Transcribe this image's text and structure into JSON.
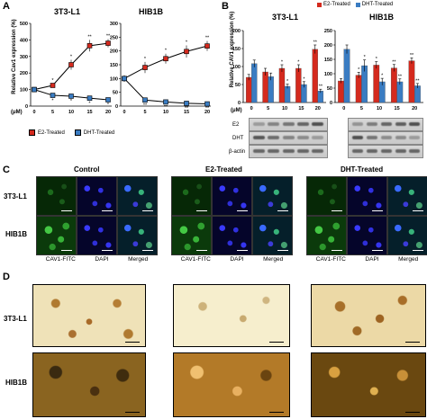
{
  "panels": {
    "A": {
      "label": "A",
      "ylabel": "Relative Cav1 expression (%)",
      "xunit": "(μM)",
      "legend": [
        "E2-Treated",
        "DHT-Treated"
      ],
      "charts": [
        {
          "title": "3T3-L1"
        },
        {
          "title": "HIB1B"
        }
      ]
    },
    "B": {
      "label": "B",
      "ylabel": "Relative CAV1 expression (%)",
      "xunit": "(μM)",
      "legend": [
        "E2-Treated",
        "DHT-Treated"
      ],
      "blot_labels": [
        "E2",
        "DHT",
        "β-actin"
      ],
      "charts": [
        {
          "title": "3T3-L1"
        },
        {
          "title": "HIB1B"
        }
      ]
    },
    "C": {
      "label": "C",
      "groups": [
        "Control",
        "E2-Treated",
        "DHT-Treated"
      ],
      "rows": [
        "3T3-L1",
        "HIB1B"
      ],
      "channels": [
        "CAV1-FITC",
        "DAPI",
        "Merged"
      ]
    },
    "D": {
      "label": "D",
      "rows": [
        "3T3-L1",
        "HIB1B"
      ]
    }
  },
  "colors": {
    "e2": "#d42a1e",
    "dht": "#3a7cc2"
  },
  "chart_data": [
    {
      "type": "line",
      "panel": "A",
      "title": "3T3-L1",
      "x": [
        0,
        5,
        10,
        15,
        20
      ],
      "ylim": [
        0,
        500
      ],
      "yticks": [
        0,
        100,
        200,
        300,
        400,
        500
      ],
      "series": [
        {
          "name": "E2-Treated",
          "values": [
            100,
            125,
            250,
            365,
            380
          ],
          "err": [
            10,
            12,
            30,
            35,
            25
          ],
          "marks": [
            "",
            "*",
            "*",
            "**",
            "**"
          ]
        },
        {
          "name": "DHT-Treated",
          "values": [
            100,
            65,
            60,
            48,
            38
          ],
          "err": [
            8,
            8,
            6,
            6,
            5
          ],
          "marks": [
            "",
            "*",
            "*",
            "*",
            "*"
          ]
        }
      ]
    },
    {
      "type": "line",
      "panel": "A",
      "title": "HIB1B",
      "x": [
        0,
        5,
        10,
        15,
        20
      ],
      "ylim": [
        0,
        300
      ],
      "yticks": [
        0,
        50,
        100,
        150,
        200,
        250,
        300
      ],
      "series": [
        {
          "name": "E2-Treated",
          "values": [
            100,
            140,
            172,
            198,
            218
          ],
          "err": [
            12,
            20,
            18,
            22,
            18
          ],
          "marks": [
            "",
            "*",
            "*",
            "*",
            "**"
          ]
        },
        {
          "name": "DHT-Treated",
          "values": [
            100,
            22,
            15,
            10,
            8
          ],
          "err": [
            10,
            4,
            3,
            3,
            2
          ],
          "marks": [
            "",
            "**",
            "**",
            "**",
            "**"
          ]
        }
      ]
    },
    {
      "type": "bar",
      "panel": "B",
      "title": "3T3-L1",
      "categories": [
        "0",
        "5",
        "10",
        "15",
        "20"
      ],
      "ylim": [
        0,
        200
      ],
      "yticks": [
        0,
        50,
        100,
        150,
        200
      ],
      "series": [
        {
          "name": "E2-Treated",
          "values": [
            70,
            85,
            95,
            95,
            148
          ],
          "err": [
            8,
            10,
            10,
            10,
            12
          ],
          "marks": [
            "",
            "",
            "*",
            "*",
            "**"
          ]
        },
        {
          "name": "DHT-Treated",
          "values": [
            108,
            72,
            45,
            50,
            32
          ],
          "err": [
            10,
            10,
            6,
            8,
            5
          ],
          "marks": [
            "",
            "",
            "*",
            "*",
            "**"
          ]
        }
      ]
    },
    {
      "type": "bar",
      "panel": "B",
      "title": "HIB1B",
      "categories": [
        "0",
        "5",
        "10",
        "15",
        "20"
      ],
      "ylim": [
        0,
        250
      ],
      "yticks": [
        0,
        50,
        100,
        150,
        200,
        250
      ],
      "series": [
        {
          "name": "E2-Treated",
          "values": [
            75,
            95,
            130,
            120,
            145
          ],
          "err": [
            8,
            10,
            12,
            12,
            10
          ],
          "marks": [
            "",
            "*",
            "*",
            "**",
            "**"
          ]
        },
        {
          "name": "DHT-Treated",
          "values": [
            185,
            128,
            72,
            72,
            58
          ],
          "err": [
            15,
            20,
            12,
            10,
            8
          ],
          "marks": [
            "",
            "*",
            "*",
            "**",
            "**"
          ]
        }
      ]
    }
  ]
}
